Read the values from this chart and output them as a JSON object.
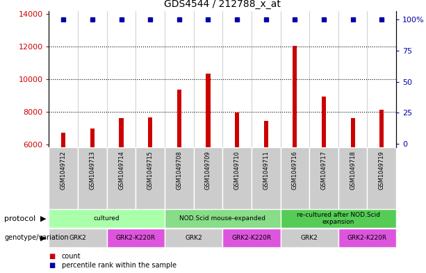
{
  "title": "GDS4544 / 212788_x_at",
  "samples": [
    "GSM1049712",
    "GSM1049713",
    "GSM1049714",
    "GSM1049715",
    "GSM1049708",
    "GSM1049709",
    "GSM1049710",
    "GSM1049711",
    "GSM1049716",
    "GSM1049717",
    "GSM1049718",
    "GSM1049719"
  ],
  "counts": [
    6700,
    6950,
    7600,
    7650,
    9350,
    10350,
    7950,
    7450,
    12050,
    8950,
    7600,
    8100
  ],
  "ylim_left": [
    5800,
    14200
  ],
  "ylim_right": [
    -3,
    107
  ],
  "yticks_left": [
    6000,
    8000,
    10000,
    12000,
    14000
  ],
  "ytick_labels_left": [
    "6000",
    "8000",
    "10000",
    "12000",
    "14000"
  ],
  "yticks_right": [
    0,
    25,
    50,
    75,
    100
  ],
  "ytick_labels_right": [
    "0",
    "25",
    "50",
    "75",
    "100%"
  ],
  "bar_color": "#cc0000",
  "dot_color": "#0000aa",
  "bg_color": "#ffffff",
  "grid_color": "#000000",
  "tick_color_left": "#cc0000",
  "tick_color_right": "#0000aa",
  "sample_box_color": "#cccccc",
  "protocol_groups": [
    {
      "label": "cultured",
      "start": 0,
      "end": 4,
      "color": "#aaffaa"
    },
    {
      "label": "NOD.Scid mouse-expanded",
      "start": 4,
      "end": 8,
      "color": "#88dd88"
    },
    {
      "label": "re-cultured after NOD.Scid\nexpansion",
      "start": 8,
      "end": 12,
      "color": "#55cc55"
    }
  ],
  "genotype_groups": [
    {
      "label": "GRK2",
      "start": 0,
      "end": 2,
      "color": "#cccccc"
    },
    {
      "label": "GRK2-K220R",
      "start": 2,
      "end": 4,
      "color": "#dd55dd"
    },
    {
      "label": "GRK2",
      "start": 4,
      "end": 6,
      "color": "#cccccc"
    },
    {
      "label": "GRK2-K220R",
      "start": 6,
      "end": 8,
      "color": "#dd55dd"
    },
    {
      "label": "GRK2",
      "start": 8,
      "end": 10,
      "color": "#cccccc"
    },
    {
      "label": "GRK2-K220R",
      "start": 10,
      "end": 12,
      "color": "#dd55dd"
    }
  ],
  "legend_items": [
    {
      "label": "count",
      "color": "#cc0000"
    },
    {
      "label": "percentile rank within the sample",
      "color": "#0000aa"
    }
  ],
  "bar_width": 0.15,
  "dot_size": 4
}
